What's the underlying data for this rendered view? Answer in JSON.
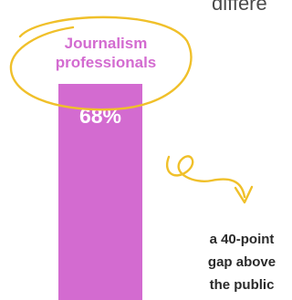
{
  "headline_fragment": "differe",
  "chart_data": {
    "type": "bar",
    "categories": [
      "Journalism professionals"
    ],
    "category_label_lines": [
      "Journalism",
      "professionals"
    ],
    "values": [
      68
    ],
    "value_labels": [
      "68%"
    ],
    "ylim": [
      0,
      100
    ],
    "bar_color": "#d36bd0"
  },
  "annotation": {
    "lines": [
      "a 40-point",
      "gap above",
      "the public"
    ],
    "ellipse_color": "#f0c02a",
    "arrow_color": "#f0c02a"
  }
}
